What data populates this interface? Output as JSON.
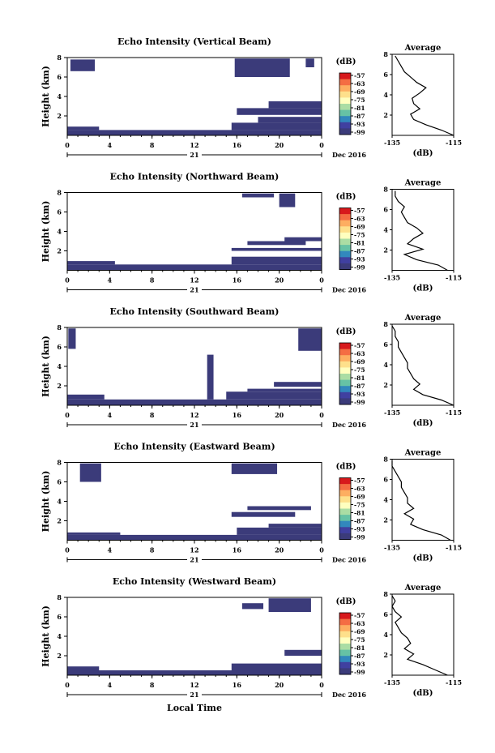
{
  "figure": {
    "xlabel": "Local Time",
    "date_label": "Dec 2016",
    "day_label": "21",
    "colorbar_unit": "(dB)",
    "colorbar_ticks": [
      "-57",
      "-63",
      "-69",
      "-75",
      "-81",
      "-87",
      "-93",
      "-99"
    ],
    "colorbar_colors": [
      "#d7191c",
      "#f46d43",
      "#fdae61",
      "#fee08b",
      "#ffffbf",
      "#abdda4",
      "#66c2a5",
      "#3288bd",
      "#4040a0",
      "#3b3b7a"
    ],
    "echo_color": "#3b3b7a"
  },
  "chart_data": [
    {
      "type": "heatmap",
      "title": "Echo Intensity (Vertical Beam)",
      "ylabel": "Height (km)",
      "xlim": [
        0,
        24
      ],
      "ylim": [
        0,
        8
      ],
      "xticks": [
        "0",
        "4",
        "8",
        "12",
        "16",
        "20",
        "0"
      ],
      "yticks": [
        "2",
        "4",
        "6",
        "8"
      ],
      "regions": [
        {
          "x0": 0.3,
          "x1": 2.6,
          "y0": 6.6,
          "y1": 7.8
        },
        {
          "x0": 0.0,
          "x1": 24.0,
          "y0": 0.0,
          "y1": 0.55
        },
        {
          "x0": 0.0,
          "x1": 3.0,
          "y0": 0.55,
          "y1": 0.9
        },
        {
          "x0": 15.5,
          "x1": 24.0,
          "y0": 0.55,
          "y1": 1.3
        },
        {
          "x0": 18.0,
          "x1": 24.0,
          "y0": 1.3,
          "y1": 1.9
        },
        {
          "x0": 16.0,
          "x1": 24.0,
          "y0": 2.1,
          "y1": 2.8
        },
        {
          "x0": 19.0,
          "x1": 24.0,
          "y0": 2.8,
          "y1": 3.5
        },
        {
          "x0": 15.8,
          "x1": 21.0,
          "y0": 6.0,
          "y1": 7.9
        },
        {
          "x0": 22.5,
          "x1": 23.3,
          "y0": 7.0,
          "y1": 7.9
        }
      ],
      "average_profile": {
        "title": "Average",
        "xlabel": "(dB)",
        "xlim": [
          -135,
          -115
        ],
        "ylim": [
          0,
          8
        ],
        "xticks": [
          "-135",
          "-115"
        ],
        "yticks": [
          "2",
          "4",
          "6",
          "8"
        ],
        "values": [
          -115,
          -119,
          -124,
          -128,
          -129,
          -126,
          -128,
          -128.5,
          -126,
          -124,
          -127,
          -129,
          -131,
          -132,
          -133,
          -134
        ]
      }
    },
    {
      "type": "heatmap",
      "title": "Echo Intensity (Northward Beam)",
      "ylabel": "Height (km)",
      "xlim": [
        0,
        24
      ],
      "ylim": [
        0,
        8
      ],
      "xticks": [
        "0",
        "4",
        "8",
        "12",
        "16",
        "20",
        "0"
      ],
      "yticks": [
        "2",
        "4",
        "6",
        "8"
      ],
      "regions": [
        {
          "x0": 0.0,
          "x1": 24.0,
          "y0": 0.0,
          "y1": 0.6
        },
        {
          "x0": 0.0,
          "x1": 4.5,
          "y0": 0.6,
          "y1": 0.95
        },
        {
          "x0": 15.5,
          "x1": 24.0,
          "y0": 0.6,
          "y1": 1.4
        },
        {
          "x0": 15.5,
          "x1": 24.0,
          "y0": 2.0,
          "y1": 2.3
        },
        {
          "x0": 17.0,
          "x1": 22.5,
          "y0": 2.6,
          "y1": 3.0
        },
        {
          "x0": 20.5,
          "x1": 24.0,
          "y0": 3.0,
          "y1": 3.4
        },
        {
          "x0": 20.0,
          "x1": 21.5,
          "y0": 6.5,
          "y1": 7.9
        },
        {
          "x0": 16.5,
          "x1": 19.5,
          "y0": 7.5,
          "y1": 7.9
        }
      ],
      "average_profile": {
        "title": "Average",
        "xlabel": "(dB)",
        "xlim": [
          -135,
          -115
        ],
        "ylim": [
          0,
          8
        ],
        "xticks": [
          "-135",
          "-115"
        ],
        "yticks": [
          "2",
          "4",
          "6",
          "8"
        ],
        "values": [
          -117,
          -120,
          -127,
          -131,
          -125,
          -130,
          -128,
          -125,
          -127,
          -130,
          -131,
          -132,
          -131,
          -133,
          -134,
          -134
        ]
      }
    },
    {
      "type": "heatmap",
      "title": "Echo Intensity (Southward Beam)",
      "ylabel": "Height (km)",
      "xlim": [
        0,
        24
      ],
      "ylim": [
        0,
        8
      ],
      "xticks": [
        "0",
        "4",
        "8",
        "12",
        "16",
        "20",
        "0"
      ],
      "yticks": [
        "2",
        "4",
        "6",
        "8"
      ],
      "regions": [
        {
          "x0": 0.0,
          "x1": 24.0,
          "y0": 0.0,
          "y1": 0.6
        },
        {
          "x0": 0.0,
          "x1": 3.5,
          "y0": 0.6,
          "y1": 1.1
        },
        {
          "x0": 15.0,
          "x1": 24.0,
          "y0": 0.6,
          "y1": 1.4
        },
        {
          "x0": 17.0,
          "x1": 24.0,
          "y0": 1.4,
          "y1": 1.7
        },
        {
          "x0": 19.5,
          "x1": 24.0,
          "y0": 1.9,
          "y1": 2.4
        },
        {
          "x0": 13.2,
          "x1": 13.8,
          "y0": 0.6,
          "y1": 5.2
        },
        {
          "x0": 0.1,
          "x1": 0.8,
          "y0": 5.8,
          "y1": 7.9
        },
        {
          "x0": 21.8,
          "x1": 24.0,
          "y0": 5.6,
          "y1": 7.9
        }
      ],
      "average_profile": {
        "title": "Average",
        "xlabel": "(dB)",
        "xlim": [
          -135,
          -115
        ],
        "ylim": [
          0,
          8
        ],
        "xticks": [
          "-135",
          "-115"
        ],
        "yticks": [
          "2",
          "4",
          "6",
          "8"
        ],
        "values": [
          -115,
          -119,
          -125,
          -128,
          -126,
          -128,
          -129,
          -130,
          -130,
          -131,
          -132,
          -133,
          -133,
          -134,
          -134,
          -135
        ]
      }
    },
    {
      "type": "heatmap",
      "title": "Echo Intensity (Eastward Beam)",
      "ylabel": "Height (km)",
      "xlim": [
        0,
        24
      ],
      "ylim": [
        0,
        8
      ],
      "xticks": [
        "0",
        "4",
        "8",
        "12",
        "16",
        "20",
        "0"
      ],
      "yticks": [
        "2",
        "4",
        "6",
        "8"
      ],
      "regions": [
        {
          "x0": 0.0,
          "x1": 24.0,
          "y0": 0.0,
          "y1": 0.55
        },
        {
          "x0": 0.0,
          "x1": 5.0,
          "y0": 0.55,
          "y1": 0.8
        },
        {
          "x0": 16.0,
          "x1": 24.0,
          "y0": 0.55,
          "y1": 1.3
        },
        {
          "x0": 19.0,
          "x1": 24.0,
          "y0": 1.3,
          "y1": 1.7
        },
        {
          "x0": 15.5,
          "x1": 21.5,
          "y0": 2.4,
          "y1": 2.9
        },
        {
          "x0": 17.0,
          "x1": 23.0,
          "y0": 3.1,
          "y1": 3.5
        },
        {
          "x0": 1.2,
          "x1": 3.2,
          "y0": 6.0,
          "y1": 7.9
        },
        {
          "x0": 15.5,
          "x1": 19.8,
          "y0": 6.8,
          "y1": 7.9
        }
      ],
      "average_profile": {
        "title": "Average",
        "xlabel": "(dB)",
        "xlim": [
          -135,
          -115
        ],
        "ylim": [
          0,
          8
        ],
        "xticks": [
          "-135",
          "-115"
        ],
        "yticks": [
          "2",
          "4",
          "6",
          "8"
        ],
        "values": [
          -116,
          -119,
          -125,
          -129,
          -128,
          -131,
          -128,
          -130,
          -130,
          -131,
          -132,
          -132,
          -133,
          -134,
          -135,
          -135
        ]
      }
    },
    {
      "type": "heatmap",
      "title": "Echo Intensity (Westward Beam)",
      "ylabel": "Height (km)",
      "xlim": [
        0,
        24
      ],
      "ylim": [
        0,
        8
      ],
      "xticks": [
        "0",
        "4",
        "8",
        "12",
        "16",
        "20",
        "0"
      ],
      "yticks": [
        "2",
        "4",
        "6",
        "8"
      ],
      "regions": [
        {
          "x0": 0.0,
          "x1": 24.0,
          "y0": 0.0,
          "y1": 0.5
        },
        {
          "x0": 0.0,
          "x1": 3.0,
          "y0": 0.5,
          "y1": 0.9
        },
        {
          "x0": 15.5,
          "x1": 24.0,
          "y0": 0.5,
          "y1": 1.2
        },
        {
          "x0": 20.5,
          "x1": 24.0,
          "y0": 2.0,
          "y1": 2.6
        },
        {
          "x0": 19.0,
          "x1": 23.0,
          "y0": 6.5,
          "y1": 7.9
        },
        {
          "x0": 16.5,
          "x1": 18.5,
          "y0": 6.8,
          "y1": 7.4
        }
      ],
      "average_profile": {
        "title": "Average",
        "xlabel": "(dB)",
        "xlim": [
          -135,
          -115
        ],
        "ylim": [
          0,
          8
        ],
        "xticks": [
          "-135",
          "-115"
        ],
        "yticks": [
          "2",
          "4",
          "6",
          "8"
        ],
        "values": [
          -117,
          -121,
          -125,
          -130,
          -128,
          -131,
          -129,
          -130,
          -132,
          -133,
          -134,
          -132,
          -134,
          -135,
          -134,
          -135
        ]
      }
    }
  ]
}
